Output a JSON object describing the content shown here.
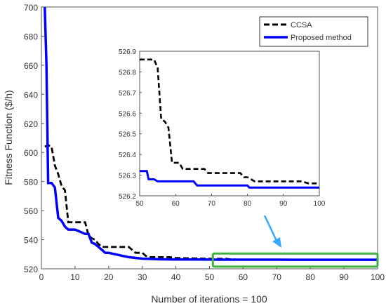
{
  "chart_data": [
    {
      "id": "main",
      "type": "line",
      "xlabel": "Number of iterations = 100",
      "ylabel": "Fitness Function ($/h)",
      "xlim": [
        0,
        100
      ],
      "ylim": [
        520,
        700
      ],
      "xticks": [
        0,
        10,
        20,
        30,
        40,
        50,
        60,
        70,
        80,
        90,
        100
      ],
      "yticks": [
        520,
        540,
        560,
        580,
        600,
        620,
        640,
        660,
        680,
        700
      ],
      "legend": {
        "position": "top-right"
      },
      "series": [
        {
          "name": "CCSA",
          "color": "#000000",
          "dash": true,
          "points": [
            [
              1,
              604
            ],
            [
              2,
              605
            ],
            [
              3,
              604
            ],
            [
              4,
              591
            ],
            [
              5,
              585
            ],
            [
              6,
              577
            ],
            [
              7,
              574
            ],
            [
              8,
              552
            ],
            [
              9,
              552
            ],
            [
              10,
              552
            ],
            [
              11,
              552
            ],
            [
              12,
              552
            ],
            [
              13,
              552
            ],
            [
              14,
              543
            ],
            [
              15,
              541
            ],
            [
              16,
              540
            ],
            [
              17,
              537
            ],
            [
              18,
              535
            ],
            [
              20,
              535
            ],
            [
              22,
              535
            ],
            [
              24,
              535
            ],
            [
              26,
              535
            ],
            [
              28,
              531
            ],
            [
              30,
              531
            ],
            [
              31,
              529
            ],
            [
              32,
              528
            ],
            [
              34,
              528
            ],
            [
              36,
              528
            ],
            [
              38,
              528
            ],
            [
              40,
              527.5
            ],
            [
              42,
              527.3
            ],
            [
              45,
              527.2
            ],
            [
              48,
              527
            ],
            [
              50,
              526.9
            ],
            [
              55,
              526.86
            ],
            [
              56,
              526.55
            ],
            [
              58,
              526.36
            ],
            [
              60,
              526.34
            ],
            [
              65,
              526.32
            ],
            [
              70,
              526.3
            ],
            [
              75,
              526.29
            ],
            [
              80,
              526.28
            ],
            [
              85,
              526.27
            ],
            [
              90,
              526.26
            ],
            [
              95,
              526.26
            ],
            [
              100,
              526.26
            ]
          ]
        },
        {
          "name": "Proposed method",
          "color": "#0000ff",
          "dash": false,
          "points": [
            [
              1,
              700
            ],
            [
              1.5,
              660
            ],
            [
              2,
              579
            ],
            [
              3,
              579
            ],
            [
              4,
              576
            ],
            [
              5,
              555
            ],
            [
              6,
              553
            ],
            [
              7,
              549
            ],
            [
              8,
              547
            ],
            [
              9,
              547
            ],
            [
              10,
              547
            ],
            [
              11,
              546
            ],
            [
              12,
              545
            ],
            [
              13,
              544
            ],
            [
              14,
              544
            ],
            [
              15,
              538
            ],
            [
              16,
              537
            ],
            [
              17,
              535
            ],
            [
              18,
              533
            ],
            [
              19,
              531
            ],
            [
              20,
              531
            ],
            [
              22,
              530
            ],
            [
              24,
              529
            ],
            [
              26,
              528
            ],
            [
              28,
              527.5
            ],
            [
              30,
              527
            ],
            [
              32,
              526.8
            ],
            [
              34,
              526.6
            ],
            [
              36,
              526.5
            ],
            [
              40,
              526.4
            ],
            [
              45,
              526.35
            ],
            [
              50,
              526.32
            ],
            [
              52,
              526.28
            ],
            [
              55,
              526.27
            ],
            [
              60,
              526.27
            ],
            [
              65,
              526.25
            ],
            [
              70,
              526.25
            ],
            [
              75,
              526.24
            ],
            [
              80,
              526.24
            ],
            [
              85,
              526.24
            ],
            [
              90,
              526.24
            ],
            [
              95,
              526.24
            ],
            [
              100,
              526.24
            ]
          ]
        }
      ]
    },
    {
      "id": "inset",
      "type": "line",
      "xlim": [
        50,
        100
      ],
      "ylim": [
        526.2,
        526.9
      ],
      "xticks": [
        50,
        60,
        70,
        80,
        90,
        100
      ],
      "yticks": [
        526.2,
        526.3,
        526.4,
        526.5,
        526.6,
        526.7,
        526.8,
        526.9
      ],
      "series": [
        {
          "name": "CCSA",
          "color": "#000000",
          "dash": true,
          "points": [
            [
              50,
              526.86
            ],
            [
              54,
              526.86
            ],
            [
              55,
              526.82
            ],
            [
              56,
              526.57
            ],
            [
              57,
              526.56
            ],
            [
              58,
              526.53
            ],
            [
              59,
              526.36
            ],
            [
              60,
              526.36
            ],
            [
              61,
              526.36
            ],
            [
              62,
              526.33
            ],
            [
              64,
              526.33
            ],
            [
              66,
              526.33
            ],
            [
              68,
              526.33
            ],
            [
              69,
              526.31
            ],
            [
              70,
              526.31
            ],
            [
              72,
              526.31
            ],
            [
              74,
              526.31
            ],
            [
              76,
              526.31
            ],
            [
              78,
              526.31
            ],
            [
              79,
              526.29
            ],
            [
              80,
              526.29
            ],
            [
              82,
              526.27
            ],
            [
              84,
              526.27
            ],
            [
              86,
              526.27
            ],
            [
              88,
              526.27
            ],
            [
              90,
              526.27
            ],
            [
              92,
              526.27
            ],
            [
              95,
              526.27
            ],
            [
              97,
              526.26
            ],
            [
              100,
              526.26
            ]
          ]
        },
        {
          "name": "Proposed method",
          "color": "#0000ff",
          "dash": false,
          "points": [
            [
              50,
              526.32
            ],
            [
              52,
              526.32
            ],
            [
              52.5,
              526.28
            ],
            [
              54,
              526.28
            ],
            [
              55,
              526.27
            ],
            [
              60,
              526.27
            ],
            [
              65,
              526.27
            ],
            [
              66,
              526.25
            ],
            [
              70,
              526.25
            ],
            [
              75,
              526.25
            ],
            [
              80,
              526.25
            ],
            [
              80.5,
              526.24
            ],
            [
              85,
              526.24
            ],
            [
              90,
              526.24
            ],
            [
              95,
              526.24
            ],
            [
              100,
              526.24
            ]
          ]
        }
      ]
    }
  ],
  "zoom_box": {
    "color": "#3db33d",
    "xrange": [
      51,
      100
    ],
    "yrange": [
      521.5,
      530.5
    ]
  },
  "arrow": {
    "color": "#33aaff"
  }
}
